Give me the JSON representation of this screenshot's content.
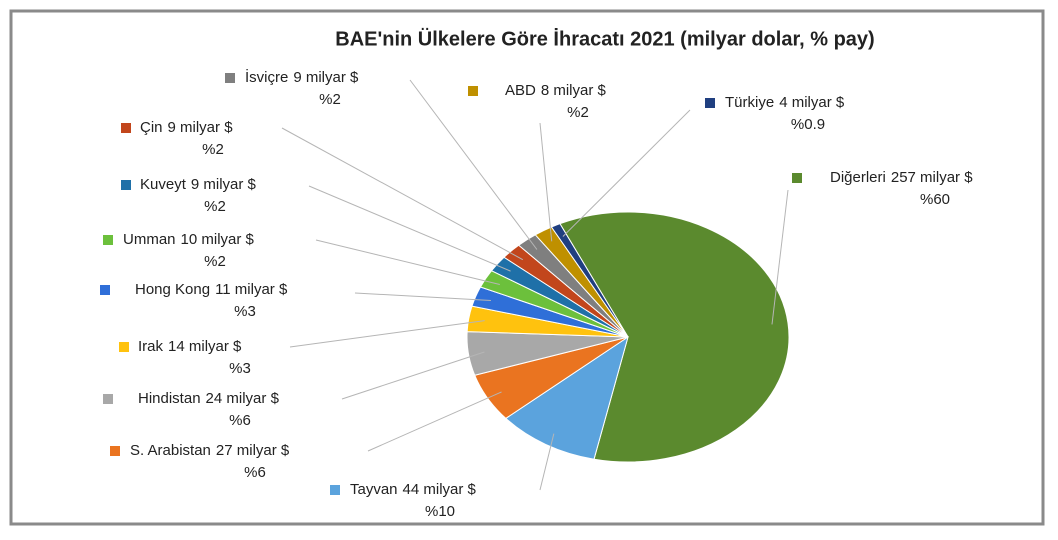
{
  "chart_data": {
    "type": "pie",
    "title": "BAE'nin Ülkelere Göre İhracatı 2021 (milyar dolar, % pay)",
    "categories": [
      "Diğerleri",
      "Tayvan",
      "S. Arabistan",
      "Hindistan",
      "Irak",
      "Hong Kong",
      "Umman",
      "Kuveyt",
      "Çin",
      "İsviçre",
      "ABD",
      "Türkiye"
    ],
    "values": [
      257,
      44,
      27,
      24,
      14,
      11,
      10,
      9,
      9,
      9,
      8,
      4
    ],
    "value_labels": [
      "257 milyar $",
      "44 milyar $",
      "27 milyar $",
      "24 milyar $",
      "14 milyar $",
      "11 milyar $",
      "10 milyar $",
      "9 milyar $",
      "9 milyar $",
      "9 milyar $",
      "8 milyar $",
      "4 milyar $"
    ],
    "shares": [
      60,
      10,
      6,
      6,
      3,
      3,
      2,
      2,
      2,
      2,
      2,
      0.9
    ],
    "share_labels": [
      "%60",
      "%10",
      "%6",
      "%6",
      "%3",
      "%3",
      "%2",
      "%2",
      "%2",
      "%2",
      "%2",
      "%0.9"
    ],
    "colors": [
      "#5b8a2e",
      "#5ba3dd",
      "#ea7420",
      "#a8a8a8",
      "#ffc20e",
      "#2f6fd8",
      "#6cc03c",
      "#1f70a8",
      "#c2461c",
      "#7f7f7f",
      "#bf9000",
      "#203f80"
    ]
  }
}
